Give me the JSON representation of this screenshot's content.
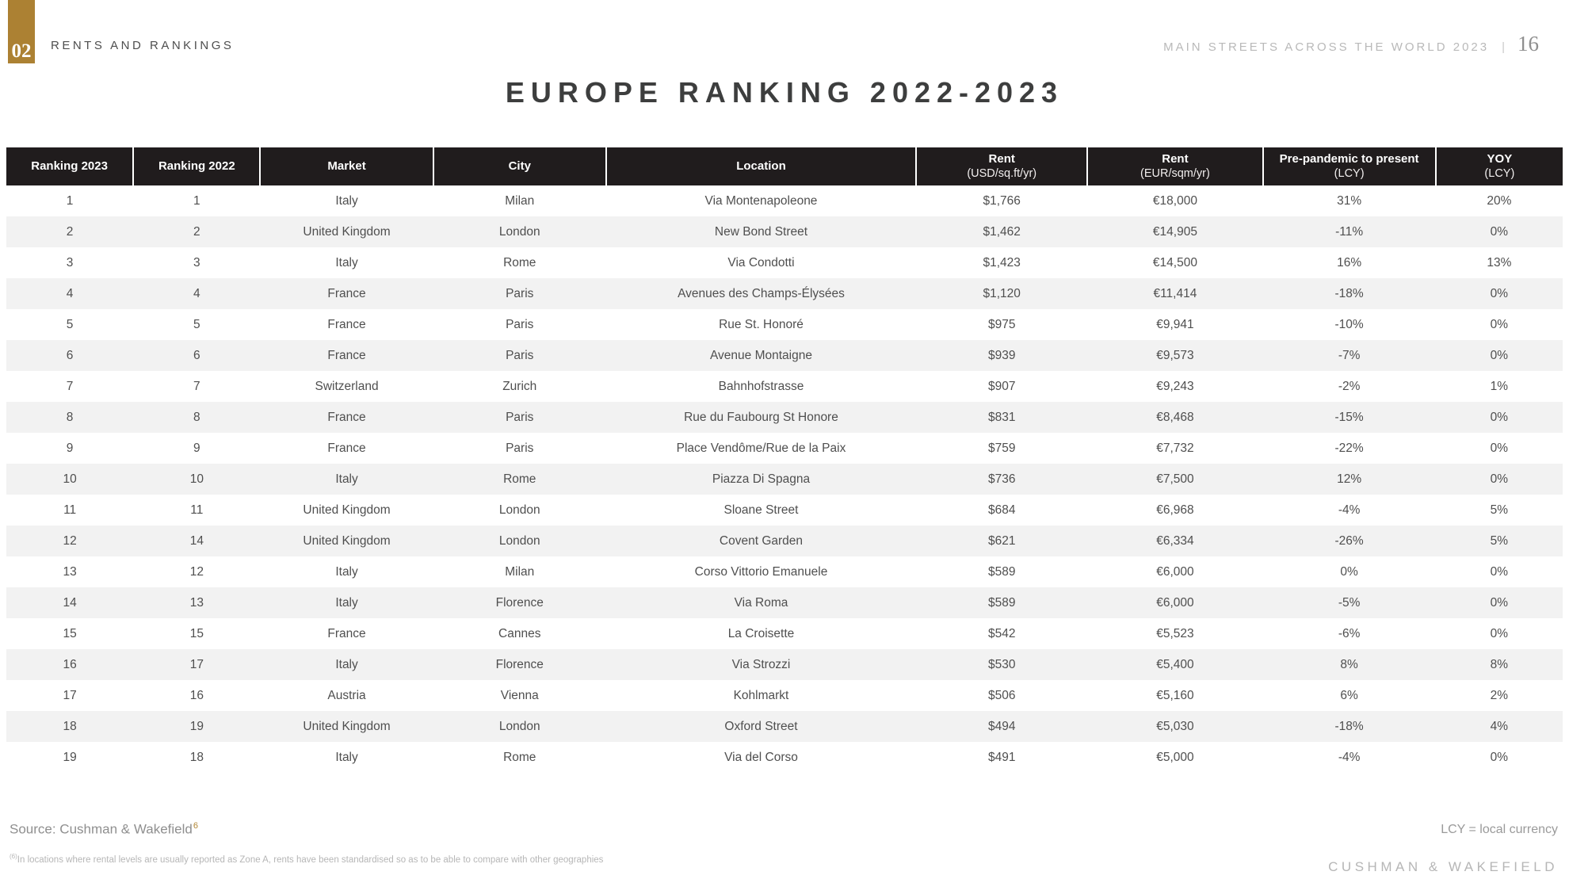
{
  "header": {
    "chapter_number": "02",
    "chapter_title": "RENTS AND RANKINGS",
    "report_title": "MAIN STREETS ACROSS THE WORLD 2023",
    "separator": "|",
    "page_number": "16"
  },
  "title": "EUROPE RANKING 2022-2023",
  "table": {
    "columns": [
      {
        "key": "ranking-2023",
        "label": "Ranking 2023",
        "sub": ""
      },
      {
        "key": "ranking-2022",
        "label": "Ranking 2022",
        "sub": ""
      },
      {
        "key": "market",
        "label": "Market",
        "sub": ""
      },
      {
        "key": "city",
        "label": "City",
        "sub": ""
      },
      {
        "key": "location",
        "label": "Location",
        "sub": ""
      },
      {
        "key": "rent-usd",
        "label": "Rent",
        "sub": "(USD/sq.ft/yr)"
      },
      {
        "key": "rent-eur",
        "label": "Rent",
        "sub": "(EUR/sqm/yr)"
      },
      {
        "key": "prepandemic",
        "label": "Pre-pandemic to present",
        "sub": "(LCY)"
      },
      {
        "key": "yoy",
        "label": "YOY",
        "sub": "(LCY)"
      }
    ],
    "rows": [
      [
        "1",
        "1",
        "Italy",
        "Milan",
        "Via Montenapoleone",
        "$1,766",
        "€18,000",
        "31%",
        "20%"
      ],
      [
        "2",
        "2",
        "United Kingdom",
        "London",
        "New Bond Street",
        "$1,462",
        "€14,905",
        "-11%",
        "0%"
      ],
      [
        "3",
        "3",
        "Italy",
        "Rome",
        "Via Condotti",
        "$1,423",
        "€14,500",
        "16%",
        "13%"
      ],
      [
        "4",
        "4",
        "France",
        "Paris",
        "Avenues des Champs-Élysées",
        "$1,120",
        "€11,414",
        "-18%",
        "0%"
      ],
      [
        "5",
        "5",
        "France",
        "Paris",
        "Rue St. Honoré",
        "$975",
        "€9,941",
        "-10%",
        "0%"
      ],
      [
        "6",
        "6",
        "France",
        "Paris",
        "Avenue Montaigne",
        "$939",
        "€9,573",
        "-7%",
        "0%"
      ],
      [
        "7",
        "7",
        "Switzerland",
        "Zurich",
        "Bahnhofstrasse",
        "$907",
        "€9,243",
        "-2%",
        "1%"
      ],
      [
        "8",
        "8",
        "France",
        "Paris",
        "Rue du Faubourg St Honore",
        "$831",
        "€8,468",
        "-15%",
        "0%"
      ],
      [
        "9",
        "9",
        "France",
        "Paris",
        "Place Vendôme/Rue de la Paix",
        "$759",
        "€7,732",
        "-22%",
        "0%"
      ],
      [
        "10",
        "10",
        "Italy",
        "Rome",
        "Piazza Di Spagna",
        "$736",
        "€7,500",
        "12%",
        "0%"
      ],
      [
        "11",
        "11",
        "United Kingdom",
        "London",
        "Sloane Street",
        "$684",
        "€6,968",
        "-4%",
        "5%"
      ],
      [
        "12",
        "14",
        "United Kingdom",
        "London",
        "Covent Garden",
        "$621",
        "€6,334",
        "-26%",
        "5%"
      ],
      [
        "13",
        "12",
        "Italy",
        "Milan",
        "Corso Vittorio Emanuele",
        "$589",
        "€6,000",
        "0%",
        "0%"
      ],
      [
        "14",
        "13",
        "Italy",
        "Florence",
        "Via Roma",
        "$589",
        "€6,000",
        "-5%",
        "0%"
      ],
      [
        "15",
        "15",
        "France",
        "Cannes",
        "La Croisette",
        "$542",
        "€5,523",
        "-6%",
        "0%"
      ],
      [
        "16",
        "17",
        "Italy",
        "Florence",
        "Via Strozzi",
        "$530",
        "€5,400",
        "8%",
        "8%"
      ],
      [
        "17",
        "16",
        "Austria",
        "Vienna",
        "Kohlmarkt",
        "$506",
        "€5,160",
        "6%",
        "2%"
      ],
      [
        "18",
        "19",
        "United Kingdom",
        "London",
        "Oxford Street",
        "$494",
        "€5,030",
        "-18%",
        "4%"
      ],
      [
        "19",
        "18",
        "Italy",
        "Rome",
        "Via del Corso",
        "$491",
        "€5,000",
        "-4%",
        "0%"
      ]
    ]
  },
  "footer": {
    "source": "Source: Cushman & Wakefield",
    "source_superscript": "6",
    "lcy_note": "LCY = local currency",
    "footnote_superscript": "(6)",
    "footnote": "In locations where rental levels are usually reported as Zone A, rents have been standardised so as to be able to compare with other geographies",
    "brand": "CUSHMAN & WAKEFIELD"
  },
  "colors": {
    "accent_gold": "#AC8133",
    "table_header_bg": "#201C1D",
    "row_stripe_bg": "#F2F2F2",
    "title_text": "#3D3E3E"
  }
}
